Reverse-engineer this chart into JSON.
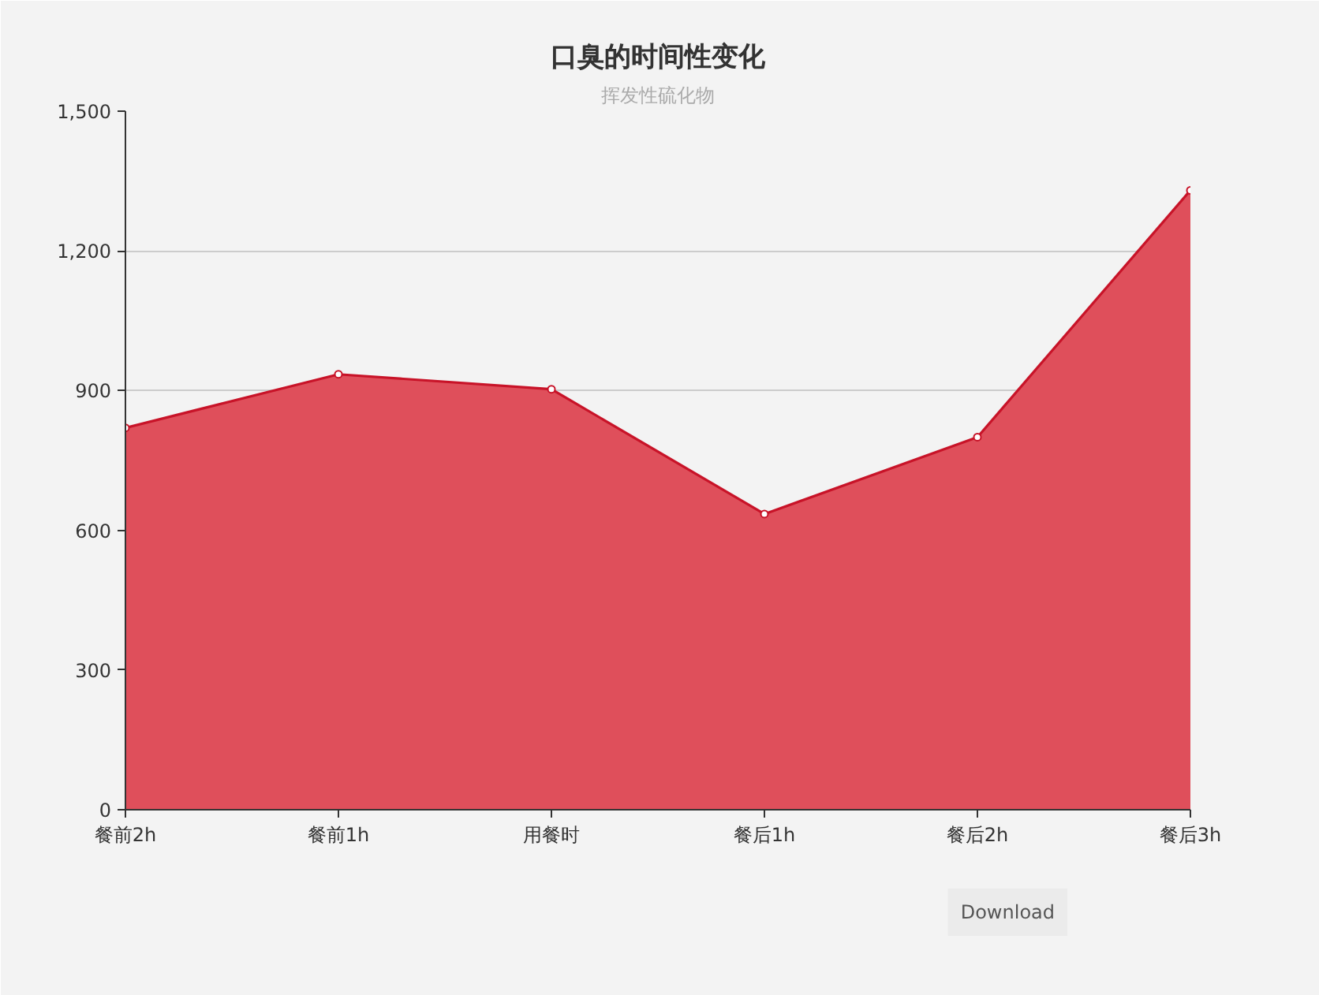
{
  "chart_data": {
    "type": "area",
    "title": "口臭的时间性变化",
    "subtitle": "挥发性硫化物",
    "categories": [
      "餐前2h",
      "餐前1h",
      "用餐时",
      "餐后1h",
      "餐后2h",
      "餐后3h"
    ],
    "values": [
      820,
      935,
      903,
      635,
      800,
      1330
    ],
    "color": "#df4f5b",
    "ylim": [
      0,
      1500
    ],
    "yticks": [
      0,
      300,
      600,
      900,
      {
        "value": 1200,
        "label": "1,200"
      },
      {
        "value": 1500,
        "label": "1,500"
      }
    ],
    "grid": "y",
    "marker": "circle",
    "annotations": [
      "Download"
    ]
  }
}
